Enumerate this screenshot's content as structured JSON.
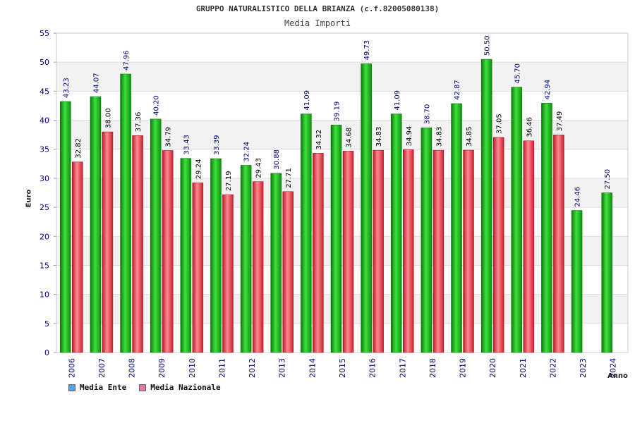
{
  "header": {
    "title": "GRUPPO NATURALISTICO DELLA BRIANZA (c.f.82005080138)",
    "subtitle": "Media Importi"
  },
  "legend": {
    "items": [
      {
        "label": "Media Ente",
        "color": "#5aa0e6"
      },
      {
        "label": "Media Nazionale",
        "color": "#e07aa8"
      }
    ]
  },
  "colors": {
    "ente_bar": "#1ec21e",
    "nazionale_bar": "#e8333f",
    "grid_band": "#f2f2f2",
    "axis_text": "#000080"
  },
  "chart_data": {
    "type": "bar",
    "title": "GRUPPO NATURALISTICO DELLA BRIANZA (c.f.82005080138)",
    "subtitle": "Media Importi",
    "xlabel": "Anno",
    "ylabel": "Euro",
    "ylim": [
      0,
      55
    ],
    "yticks": [
      0,
      5,
      10,
      15,
      20,
      25,
      30,
      35,
      40,
      45,
      50,
      55
    ],
    "grid": true,
    "legend_position": "bottom-left",
    "categories": [
      "2006",
      "2007",
      "2008",
      "2009",
      "2010",
      "2011",
      "2012",
      "2013",
      "2014",
      "2015",
      "2016",
      "2017",
      "2018",
      "2019",
      "2020",
      "2021",
      "2022",
      "2023",
      "2024"
    ],
    "series": [
      {
        "name": "Media Ente",
        "values": [
          43.23,
          44.07,
          47.96,
          40.2,
          33.43,
          33.39,
          32.24,
          30.88,
          41.09,
          39.19,
          49.73,
          41.09,
          38.7,
          42.87,
          50.5,
          45.7,
          42.94,
          24.46,
          27.5
        ],
        "labels": [
          "43.23",
          "44.07",
          "47.96",
          "40.20",
          "33.43",
          "33.39",
          "32.24",
          "30.88",
          "41.09",
          "39.19",
          "49.73",
          "41.09",
          "38.70",
          "42.87",
          "50.50",
          "45.70",
          "42.94",
          "24.46",
          "27.50"
        ]
      },
      {
        "name": "Media Nazionale",
        "values": [
          32.82,
          38.0,
          37.36,
          34.79,
          29.24,
          27.19,
          29.43,
          27.71,
          34.32,
          34.68,
          34.83,
          34.94,
          34.83,
          34.85,
          37.05,
          36.46,
          37.49,
          null,
          null
        ],
        "labels": [
          "32.82",
          "38.00",
          "37.36",
          "34.79",
          "29.24",
          "27.19",
          "29.43",
          "27.71",
          "34.32",
          "34.68",
          "34.83",
          "34.94",
          "34.83",
          "34.85",
          "37.05",
          "36.46",
          "37.49",
          "",
          ""
        ]
      }
    ]
  }
}
